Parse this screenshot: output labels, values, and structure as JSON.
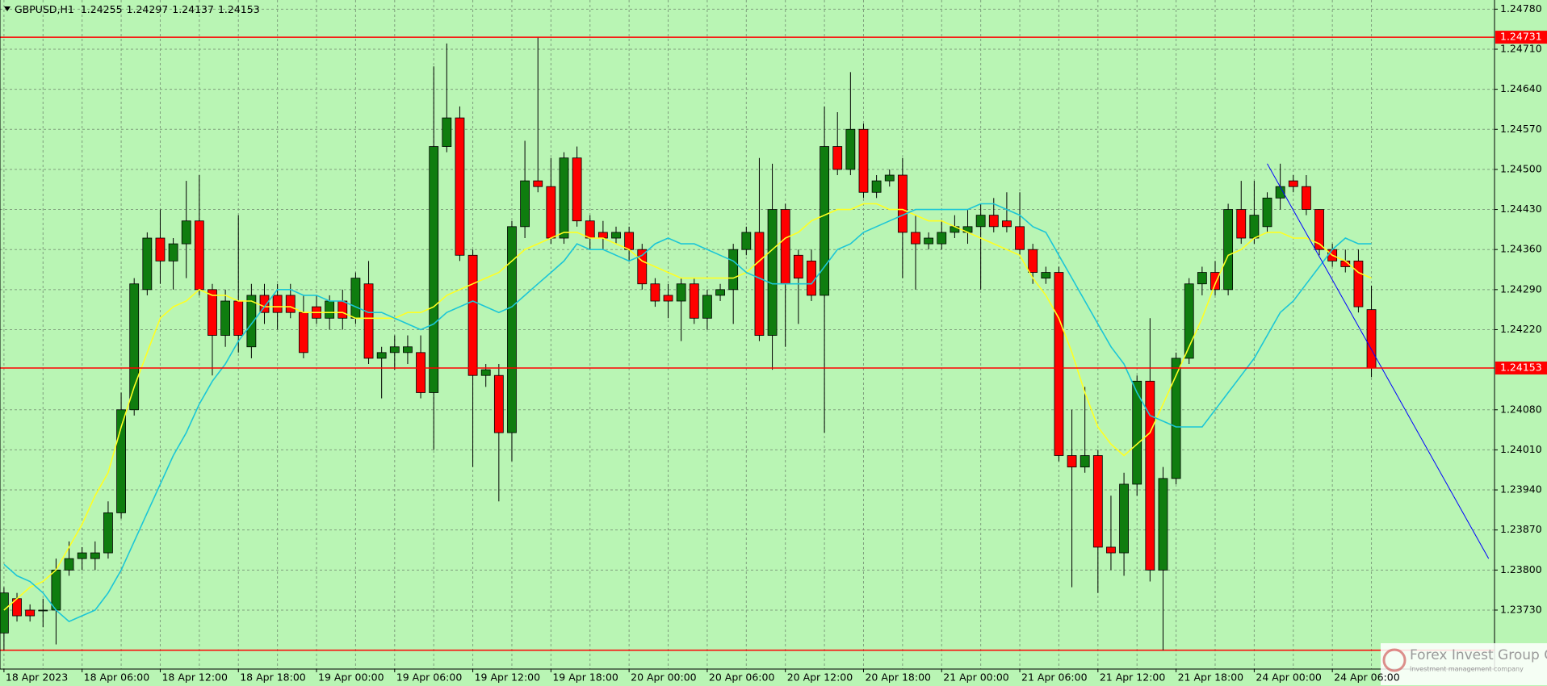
{
  "chart_data": {
    "type": "candlestick",
    "title": "GBPUSD,H1",
    "categories": [
      "18 Apr 2023",
      null,
      null,
      null,
      null,
      null,
      "18 Apr 06:00",
      null,
      null,
      null,
      null,
      null,
      "18 Apr 12:00",
      null,
      null,
      null,
      null,
      null,
      "18 Apr 18:00",
      null,
      null,
      null,
      null,
      null,
      "19 Apr 00:00",
      null,
      null,
      null,
      null,
      null,
      "19 Apr 06:00",
      null,
      null,
      null,
      null,
      null,
      "19 Apr 12:00",
      null,
      null,
      null,
      null,
      null,
      "19 Apr 18:00",
      null,
      null,
      null,
      null,
      null,
      "20 Apr 00:00",
      null,
      null,
      null,
      null,
      null,
      "20 Apr 06:00",
      null,
      null,
      null,
      null,
      null,
      "20 Apr 12:00",
      null,
      null,
      null,
      null,
      null,
      "20 Apr 18:00",
      null,
      null,
      null,
      null,
      null,
      "21 Apr 00:00",
      null,
      null,
      null,
      null,
      null,
      "21 Apr 06:00",
      null,
      null,
      null,
      null,
      null,
      "21 Apr 12:00",
      null,
      null,
      null,
      null,
      null,
      "21 Apr 18:00",
      null,
      null,
      null,
      null,
      null,
      "24 Apr 00:00",
      null,
      null,
      null,
      null,
      null,
      "24 Apr 06:00",
      null,
      null,
      null
    ],
    "open": [
      1.2369,
      1.2375,
      1.2373,
      1.2373,
      1.2373,
      1.238,
      1.2382,
      1.2382,
      1.2383,
      1.239,
      1.2408,
      1.2429,
      1.2438,
      1.2434,
      1.2437,
      1.2441,
      1.2429,
      1.2421,
      1.2427,
      1.2419,
      1.2428,
      1.2428,
      1.2428,
      1.2425,
      1.2426,
      1.2424,
      1.2427,
      1.2424,
      1.243,
      1.2417,
      1.2418,
      1.2418,
      1.2418,
      1.2411,
      1.2454,
      1.2459,
      1.2435,
      1.2414,
      1.2414,
      1.2404,
      1.244,
      1.2448,
      1.2447,
      1.2438,
      1.2452,
      1.2441,
      1.2439,
      1.2438,
      1.2439,
      1.2436,
      1.243,
      1.2428,
      1.2427,
      1.243,
      1.2424,
      1.2428,
      1.2429,
      1.2436,
      1.2439,
      1.2421,
      1.2443,
      1.2435,
      1.2434,
      1.2428,
      1.2454,
      1.245,
      1.2457,
      1.2446,
      1.2448,
      1.2449,
      1.2439,
      1.2437,
      1.2437,
      1.2439,
      1.2439,
      1.244,
      1.2442,
      1.2441,
      1.244,
      1.2436,
      1.2431,
      1.2432,
      1.24,
      1.2398,
      1.24,
      1.2384,
      1.2383,
      1.2395,
      1.2413,
      1.238,
      1.2396,
      1.2417,
      1.243,
      1.2432,
      1.2429,
      1.2443,
      1.2438,
      1.244,
      1.2445,
      1.2448,
      1.2447,
      1.2443,
      1.2436,
      1.2434,
      1.2434,
      1.24255
    ],
    "high": [
      1.2377,
      1.2376,
      1.2374,
      1.2375,
      1.2382,
      1.2385,
      1.2384,
      1.2385,
      1.2392,
      1.2411,
      1.2431,
      1.2439,
      1.2443,
      1.2438,
      1.2448,
      1.2449,
      1.243,
      1.2429,
      1.2442,
      1.243,
      1.243,
      1.243,
      1.243,
      1.2428,
      1.2428,
      1.2428,
      1.2429,
      1.2432,
      1.2434,
      1.2419,
      1.2421,
      1.2421,
      1.2421,
      1.2468,
      1.2472,
      1.2461,
      1.2436,
      1.2416,
      1.2416,
      1.2441,
      1.2455,
      1.2473,
      1.2452,
      1.2453,
      1.2454,
      1.2442,
      1.2441,
      1.244,
      1.244,
      1.2437,
      1.2431,
      1.243,
      1.2431,
      1.2431,
      1.2429,
      1.243,
      1.2437,
      1.244,
      1.2452,
      1.2451,
      1.2444,
      1.2436,
      1.2436,
      1.2461,
      1.246,
      1.2467,
      1.2458,
      1.2449,
      1.245,
      1.2452,
      1.2442,
      1.2439,
      1.2441,
      1.2442,
      1.2443,
      1.2444,
      1.2445,
      1.2446,
      1.2446,
      1.2437,
      1.2433,
      1.2433,
      1.2408,
      1.2412,
      1.2401,
      1.2393,
      1.2397,
      1.2414,
      1.2424,
      1.2398,
      1.2418,
      1.2431,
      1.2433,
      1.2434,
      1.2444,
      1.2448,
      1.2448,
      1.2446,
      1.2451,
      1.2449,
      1.2449,
      1.2442,
      1.2437,
      1.2436,
      1.2436,
      1.24297
    ],
    "low": [
      1.2366,
      1.2371,
      1.2371,
      1.237,
      1.2367,
      1.2379,
      1.238,
      1.238,
      1.2382,
      1.2389,
      1.2407,
      1.2428,
      1.243,
      1.2429,
      1.2431,
      1.2428,
      1.2414,
      1.2419,
      1.2418,
      1.2417,
      1.2423,
      1.2422,
      1.2424,
      1.2417,
      1.2423,
      1.2422,
      1.2422,
      1.2423,
      1.2416,
      1.241,
      1.2415,
      1.2416,
      1.241,
      1.2401,
      1.2453,
      1.2434,
      1.2398,
      1.2412,
      1.2392,
      1.2399,
      1.2438,
      1.2446,
      1.2437,
      1.2437,
      1.244,
      1.2436,
      1.2436,
      1.2437,
      1.2434,
      1.2429,
      1.2426,
      1.2424,
      1.242,
      1.2423,
      1.2422,
      1.2427,
      1.2423,
      1.2435,
      1.242,
      1.2415,
      1.2419,
      1.2423,
      1.2427,
      1.2404,
      1.2449,
      1.2449,
      1.2445,
      1.2445,
      1.2447,
      1.2431,
      1.2429,
      1.2436,
      1.2436,
      1.2438,
      1.2437,
      1.2429,
      1.2439,
      1.2439,
      1.2435,
      1.243,
      1.243,
      1.2399,
      1.2377,
      1.2397,
      1.2376,
      1.238,
      1.2379,
      1.2393,
      1.2378,
      1.2366,
      1.2395,
      1.2416,
      1.2428,
      1.2428,
      1.2428,
      1.2437,
      1.2437,
      1.2439,
      1.2443,
      1.2446,
      1.2442,
      1.2435,
      1.2433,
      1.2432,
      1.2425,
      1.24137
    ],
    "close": [
      1.2376,
      1.2372,
      1.2372,
      1.2373,
      1.238,
      1.2382,
      1.2383,
      1.2383,
      1.239,
      1.2408,
      1.243,
      1.2438,
      1.2434,
      1.2437,
      1.2441,
      1.2429,
      1.2421,
      1.2427,
      1.2421,
      1.2428,
      1.2425,
      1.2425,
      1.2425,
      1.2418,
      1.2424,
      1.2427,
      1.2424,
      1.2431,
      1.2417,
      1.2418,
      1.2419,
      1.2419,
      1.2411,
      1.2454,
      1.2459,
      1.2435,
      1.2414,
      1.2415,
      1.2404,
      1.244,
      1.2448,
      1.2447,
      1.2438,
      1.2452,
      1.2441,
      1.2438,
      1.2438,
      1.2439,
      1.2436,
      1.243,
      1.2427,
      1.2427,
      1.243,
      1.2424,
      1.2428,
      1.2429,
      1.2436,
      1.2439,
      1.2421,
      1.2443,
      1.243,
      1.2431,
      1.2428,
      1.2454,
      1.245,
      1.2457,
      1.2446,
      1.2448,
      1.2449,
      1.2439,
      1.2437,
      1.2438,
      1.2439,
      1.244,
      1.244,
      1.2442,
      1.244,
      1.244,
      1.2436,
      1.2432,
      1.2432,
      1.24,
      1.2398,
      1.24,
      1.2384,
      1.2383,
      1.2395,
      1.2413,
      1.238,
      1.2396,
      1.2417,
      1.243,
      1.2432,
      1.2429,
      1.2443,
      1.2438,
      1.2442,
      1.2445,
      1.2447,
      1.2447,
      1.2443,
      1.2436,
      1.2434,
      1.2433,
      1.2426,
      1.24153
    ],
    "up_color": "#0f7d0f",
    "down_color": "#ff0000",
    "ma": [
      {
        "color": "#ffff22",
        "values": [
          1.2373,
          1.2375,
          1.2377,
          1.2378,
          1.238,
          1.2384,
          1.2388,
          1.2393,
          1.2397,
          1.2405,
          1.2412,
          1.2418,
          1.2424,
          1.2426,
          1.2427,
          1.2429,
          1.2428,
          1.2428,
          1.2427,
          1.2427,
          1.2426,
          1.2426,
          1.2426,
          1.2425,
          1.2425,
          1.2425,
          1.2425,
          1.2424,
          1.2424,
          1.2424,
          1.2424,
          1.2425,
          1.2425,
          1.2426,
          1.2428,
          1.2429,
          1.243,
          1.2431,
          1.2432,
          1.2434,
          1.2436,
          1.2437,
          1.2438,
          1.2439,
          1.2439,
          1.2438,
          1.2438,
          1.2437,
          1.2436,
          1.2434,
          1.2433,
          1.2432,
          1.2431,
          1.2431,
          1.2431,
          1.2431,
          1.2431,
          1.2432,
          1.2434,
          1.2436,
          1.2438,
          1.2439,
          1.2441,
          1.2442,
          1.2443,
          1.2443,
          1.2444,
          1.2444,
          1.2443,
          1.2443,
          1.2442,
          1.2441,
          1.2441,
          1.244,
          1.2439,
          1.2438,
          1.2437,
          1.2436,
          1.2435,
          1.2431,
          1.2428,
          1.2424,
          1.2418,
          1.2411,
          1.2405,
          1.2402,
          1.24,
          1.2402,
          1.2404,
          1.2409,
          1.2414,
          1.2419,
          1.2424,
          1.243,
          1.2435,
          1.2436,
          1.2438,
          1.2439,
          1.2439,
          1.2438,
          1.2438,
          1.2437,
          1.2435,
          1.2434,
          1.2432,
          1.2431
        ]
      },
      {
        "color": "#1cc6d6",
        "values": [
          1.2381,
          1.2379,
          1.2378,
          1.2376,
          1.2373,
          1.2371,
          1.2372,
          1.2373,
          1.2376,
          1.238,
          1.2385,
          1.239,
          1.2395,
          1.24,
          1.2404,
          1.2409,
          1.2413,
          1.2416,
          1.242,
          1.2423,
          1.2426,
          1.2429,
          1.2429,
          1.2428,
          1.2428,
          1.2427,
          1.2427,
          1.2426,
          1.2425,
          1.2425,
          1.2424,
          1.2423,
          1.2422,
          1.2423,
          1.2425,
          1.2426,
          1.2427,
          1.2426,
          1.2425,
          1.2426,
          1.2428,
          1.243,
          1.2432,
          1.2434,
          1.2437,
          1.2436,
          1.2436,
          1.2435,
          1.2434,
          1.2435,
          1.2437,
          1.2438,
          1.2437,
          1.2437,
          1.2436,
          1.2435,
          1.2434,
          1.2432,
          1.2431,
          1.243,
          1.243,
          1.243,
          1.243,
          1.2433,
          1.2436,
          1.2437,
          1.2439,
          1.244,
          1.2441,
          1.2442,
          1.2443,
          1.2443,
          1.2443,
          1.2443,
          1.2443,
          1.2444,
          1.2444,
          1.2443,
          1.2442,
          1.244,
          1.2439,
          1.2435,
          1.2431,
          1.2427,
          1.2423,
          1.2419,
          1.2416,
          1.2411,
          1.2407,
          1.2406,
          1.2405,
          1.2405,
          1.2405,
          1.2408,
          1.2411,
          1.2414,
          1.2417,
          1.2421,
          1.2425,
          1.2427,
          1.243,
          1.2433,
          1.2436,
          1.2438,
          1.2437,
          1.2437
        ]
      }
    ],
    "hlines": [
      {
        "value": 1.24731,
        "show_label": true
      },
      {
        "value": 1.2366,
        "show_label": false
      }
    ],
    "hline_color": "#ff0000",
    "bid_line": true,
    "trendline": {
      "from": [
        97,
        1.2451
      ],
      "to": [
        114,
        1.2382
      ],
      "color": "#0000ff"
    },
    "ylim": [
      1.23627,
      1.24796
    ],
    "yticks": [
      {
        "value": 1.2478,
        "label": "1.24780"
      },
      {
        "value": 1.2471,
        "label": "1.24710"
      },
      {
        "value": 1.2464,
        "label": "1.24640"
      },
      {
        "value": 1.2457,
        "label": "1.24570"
      },
      {
        "value": 1.245,
        "label": "1.24500"
      },
      {
        "value": 1.2443,
        "label": "1.24430"
      },
      {
        "value": 1.2436,
        "label": "1.24360"
      },
      {
        "value": 1.2429,
        "label": "1.24290"
      },
      {
        "value": 1.2422,
        "label": "1.24220"
      },
      {
        "value": 1.2408,
        "label": "1.24080"
      },
      {
        "value": 1.2401,
        "label": "1.24010"
      },
      {
        "value": 1.2394,
        "label": "1.23940"
      },
      {
        "value": 1.2387,
        "label": "1.23870"
      },
      {
        "value": 1.238,
        "label": "1.23800"
      },
      {
        "value": 1.2373,
        "label": "1.23730"
      }
    ],
    "grid": true
  },
  "watermark": {
    "name": "Forex Invest Group OU",
    "tagline": "Investment management company"
  }
}
